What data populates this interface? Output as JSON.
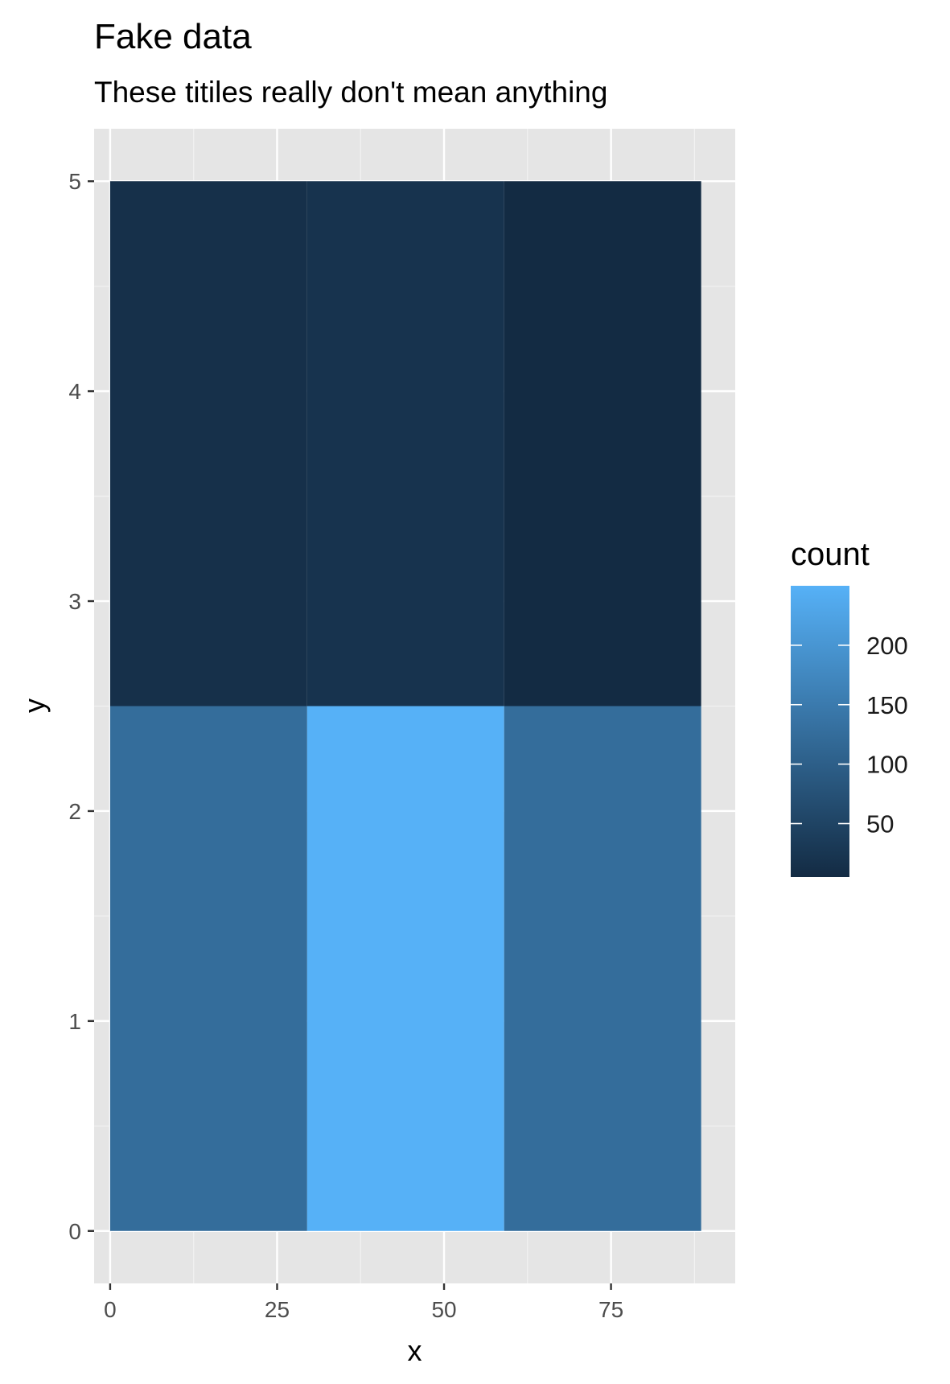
{
  "chart_data": {
    "type": "heatmap",
    "title": "Fake data",
    "subtitle": "These titiles really don't mean anything",
    "xlabel": "x",
    "ylabel": "y",
    "xlim": [
      -2.4,
      93.6
    ],
    "ylim": [
      -0.25,
      5.25
    ],
    "xticks": [
      0,
      25,
      50,
      75
    ],
    "yticks": [
      0,
      1,
      2,
      3,
      4,
      5
    ],
    "grid": true,
    "cells": [
      {
        "x0": 0,
        "x1": 29.5,
        "y0": 0,
        "y1": 2.5,
        "count": 125
      },
      {
        "x0": 29.5,
        "x1": 59,
        "y0": 0,
        "y1": 2.5,
        "count": 250
      },
      {
        "x0": 59,
        "x1": 88.5,
        "y0": 0,
        "y1": 2.5,
        "count": 125
      },
      {
        "x0": 0,
        "x1": 29.5,
        "y0": 2.5,
        "y1": 5,
        "count": 15
      },
      {
        "x0": 29.5,
        "x1": 59,
        "y0": 2.5,
        "y1": 5,
        "count": 20
      },
      {
        "x0": 59,
        "x1": 88.5,
        "y0": 2.5,
        "y1": 5,
        "count": 5
      }
    ],
    "legend": {
      "title": "count",
      "placement": "right",
      "range": [
        5,
        250
      ],
      "ticks": [
        50,
        100,
        150,
        200
      ],
      "low_color": "#132B43",
      "high_color": "#56B1F7"
    }
  }
}
